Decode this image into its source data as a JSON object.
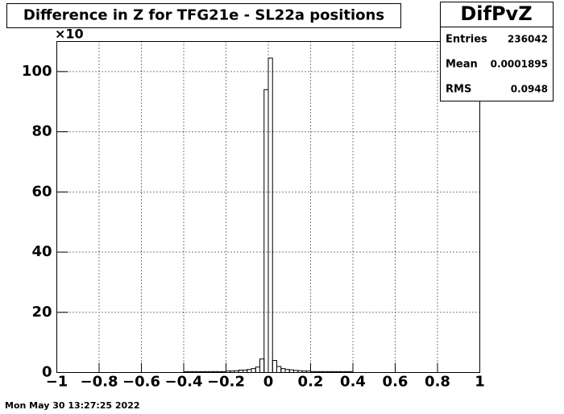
{
  "chart_data": {
    "type": "histogram",
    "title": "Difference in Z for TFG21e - SL22a positions",
    "bins": [
      -1,
      -0.98,
      -0.96,
      -0.94,
      -0.92,
      -0.9,
      -0.88,
      -0.86,
      -0.84,
      -0.82,
      -0.8,
      -0.78,
      -0.76,
      -0.74,
      -0.72,
      -0.7,
      -0.68,
      -0.66,
      -0.64,
      -0.62,
      -0.6,
      -0.58,
      -0.56,
      -0.54,
      -0.52,
      -0.5,
      -0.48,
      -0.46,
      -0.44,
      -0.42,
      -0.4,
      -0.38,
      -0.36,
      -0.34,
      -0.32,
      -0.3,
      -0.28,
      -0.26,
      -0.24,
      -0.22,
      -0.2,
      -0.18,
      -0.16,
      -0.14,
      -0.12,
      -0.1,
      -0.08,
      -0.06,
      -0.04,
      -0.02,
      0,
      0.02,
      0.04,
      0.06,
      0.08,
      0.1,
      0.12,
      0.14,
      0.16,
      0.18,
      0.2,
      0.22,
      0.24,
      0.26,
      0.28,
      0.3,
      0.32,
      0.34,
      0.36,
      0.38,
      0.4,
      0.42,
      0.44,
      0.46,
      0.48,
      0.5,
      0.52,
      0.54,
      0.56,
      0.58,
      0.6,
      0.62,
      0.64,
      0.66,
      0.68,
      0.7,
      0.72,
      0.74,
      0.76,
      0.78,
      0.8,
      0.82,
      0.84,
      0.86,
      0.88,
      0.9,
      0.92,
      0.94,
      0.96,
      0.98,
      1
    ],
    "counts": [
      0,
      0,
      0,
      0,
      0,
      0,
      0,
      0,
      0,
      0,
      0,
      0,
      0,
      0,
      0,
      0,
      0,
      0,
      0,
      0,
      0,
      0,
      0,
      0,
      0,
      0,
      0,
      0,
      0,
      0,
      0.3,
      0.3,
      0.3,
      0.3,
      0.3,
      0.3,
      0.3,
      0.3,
      0.3,
      0.3,
      0.5,
      0.5,
      0.6,
      0.8,
      0.8,
      1,
      1.3,
      1.8,
      4.5,
      94,
      104.5,
      4,
      2,
      1.3,
      1,
      0.9,
      0.7,
      0.6,
      0.5,
      0.5,
      0.3,
      0.3,
      0.3,
      0.3,
      0.3,
      0.3,
      0.3,
      0.3,
      0.3,
      0.3,
      0,
      0,
      0,
      0,
      0,
      0,
      0,
      0,
      0,
      0,
      0,
      0,
      0,
      0,
      0,
      0,
      0,
      0,
      0,
      0,
      0,
      0,
      0,
      0,
      0,
      0,
      0,
      0,
      0,
      0
    ],
    "color": "#000000",
    "xlim": [
      -1,
      1
    ],
    "xticks": [
      {
        "value": -1,
        "label": "−1"
      },
      {
        "value": -0.8,
        "label": "−0.8"
      },
      {
        "value": -0.6,
        "label": "−0.6"
      },
      {
        "value": -0.4,
        "label": "−0.4"
      },
      {
        "value": -0.2,
        "label": "−0.2"
      },
      0,
      0.2,
      0.4,
      0.6,
      0.8,
      1
    ],
    "ylim": [
      0,
      110
    ],
    "yticks": [
      0,
      20,
      40,
      60,
      80,
      100
    ],
    "y_multiplier": "×10",
    "grid": true,
    "stats": {
      "name": "DifPvZ",
      "rows": [
        {
          "label": "Entries",
          "value": 236042
        },
        {
          "label": "Mean",
          "value": 0.0001895
        },
        {
          "label": "RMS",
          "value": 0.0948
        }
      ]
    },
    "timestamp": "Mon May 30 13:27:25 2022"
  }
}
